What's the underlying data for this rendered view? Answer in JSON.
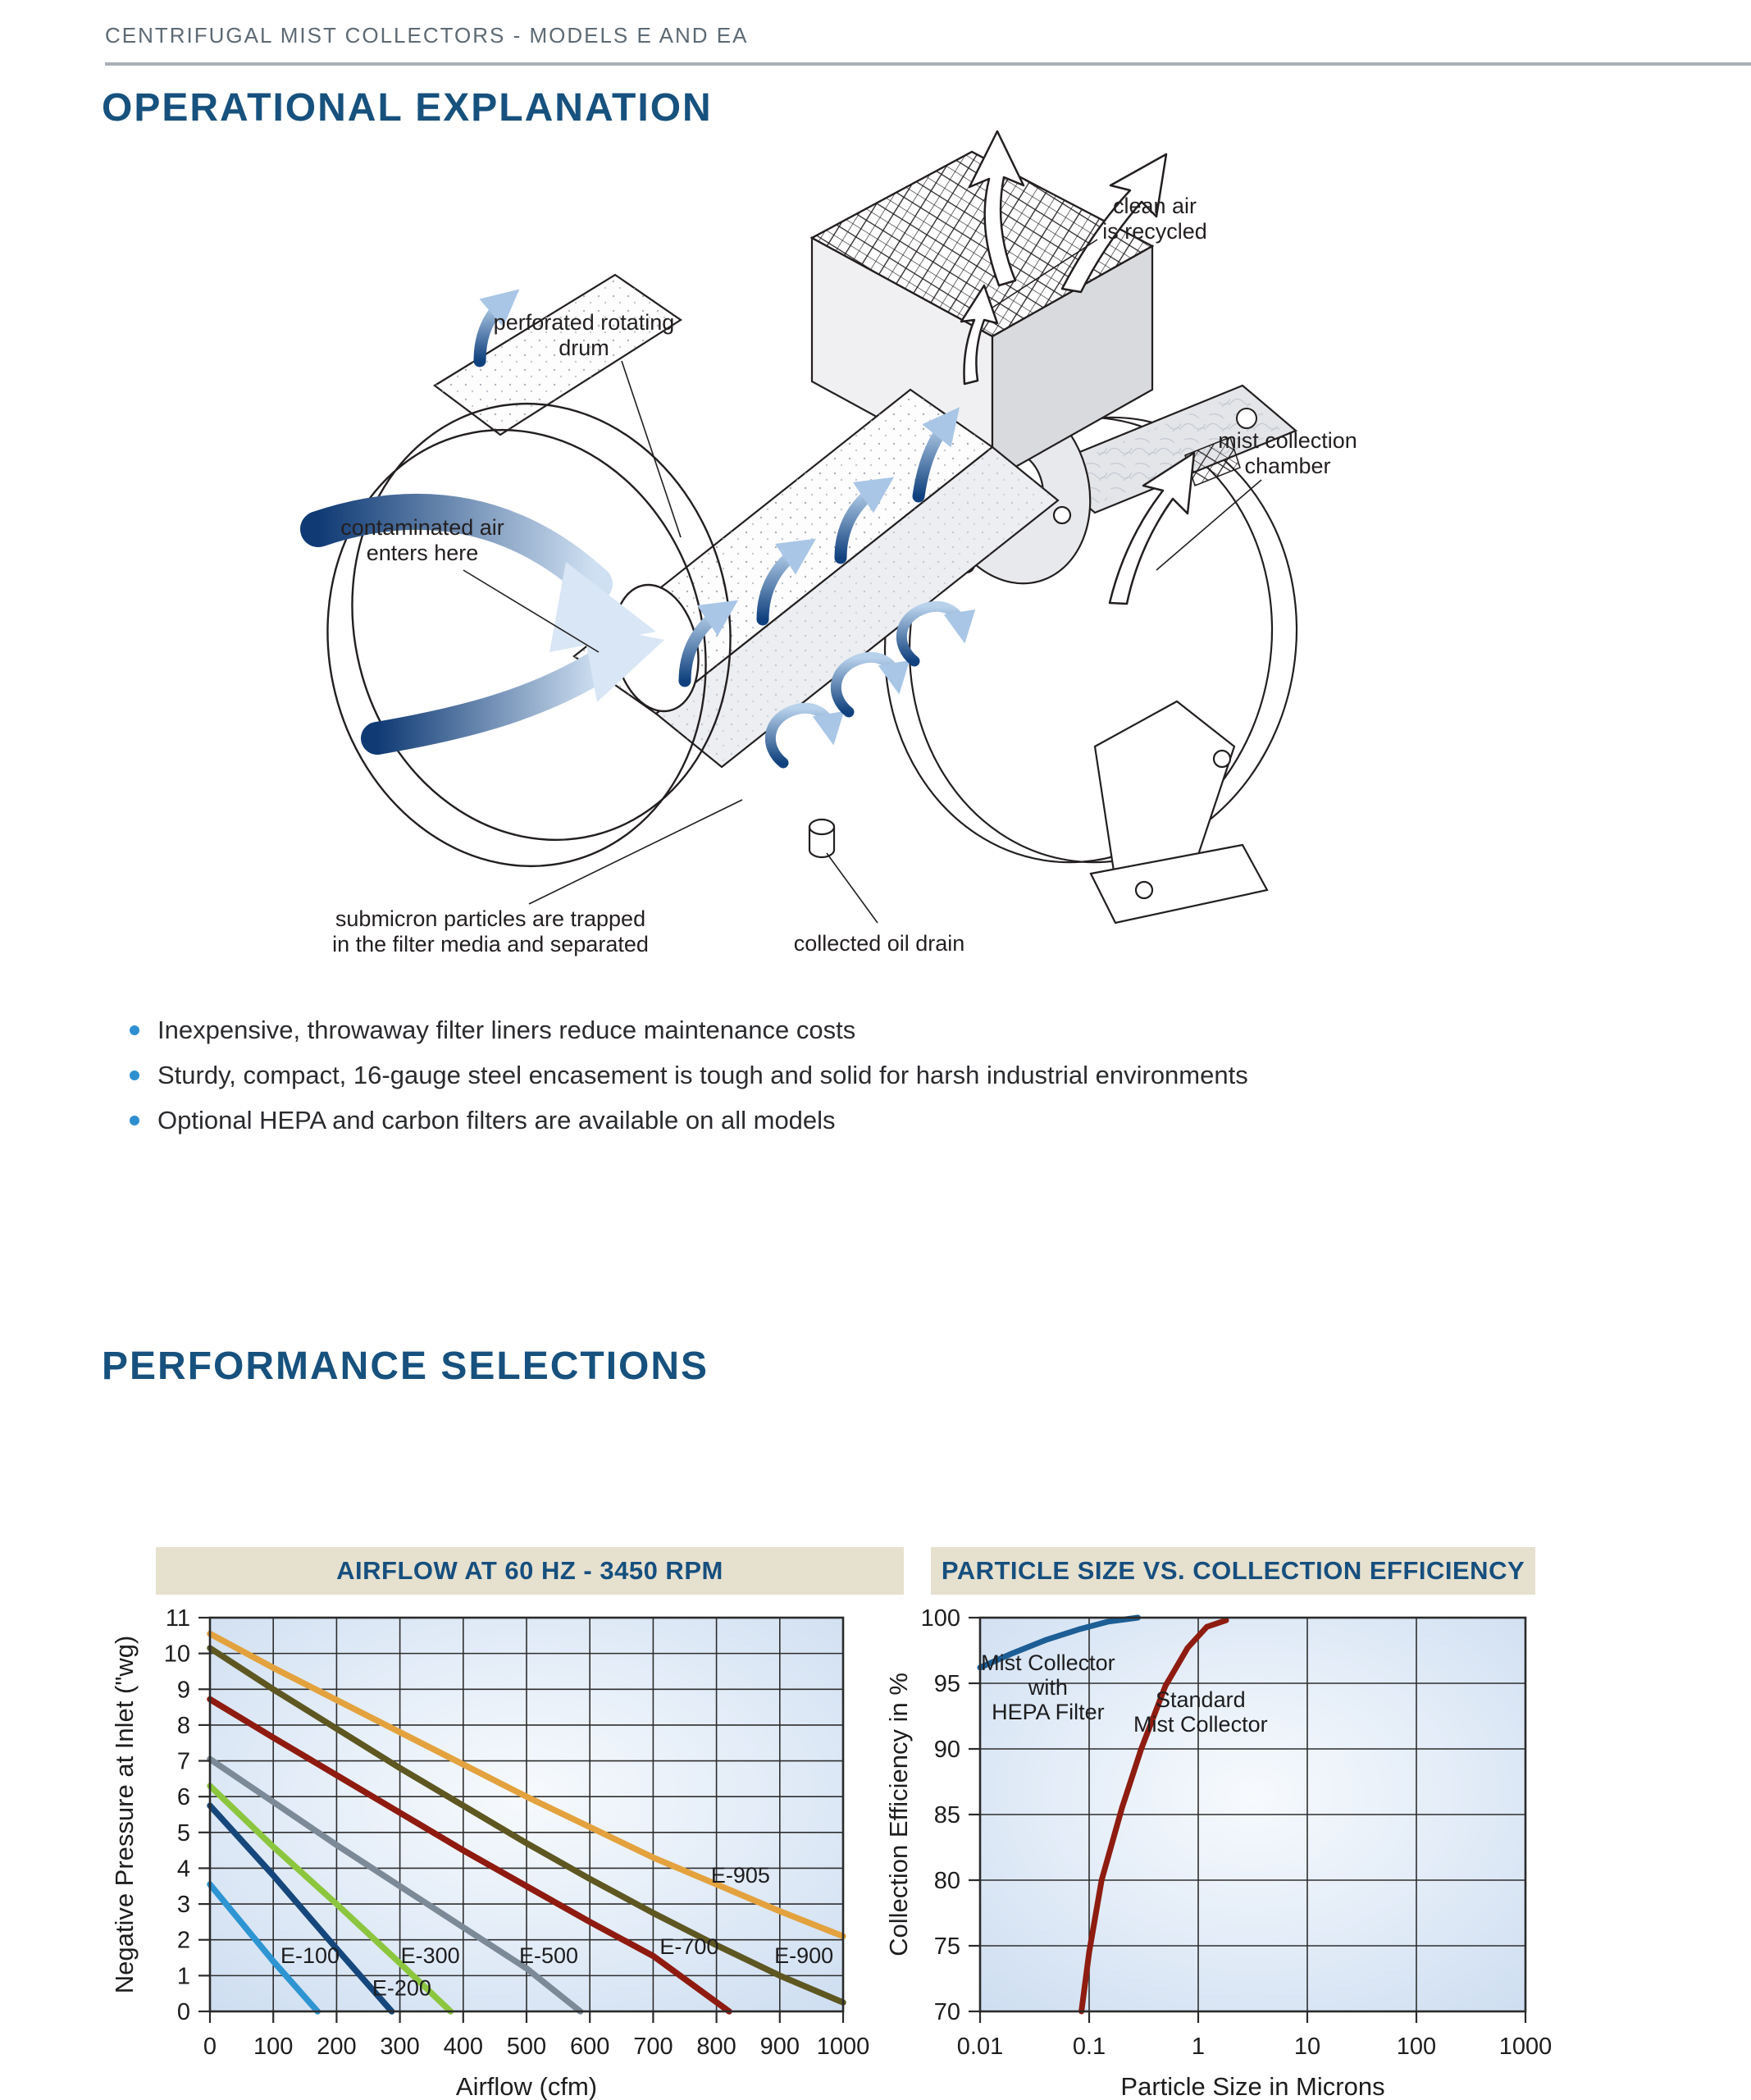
{
  "page": {
    "eyebrow": "CENTRIFUGAL MIST COLLECTORS - MODELS E AND EA",
    "section1_title": "OPERATIONAL EXPLANATION",
    "section2_title": "PERFORMANCE SELECTIONS",
    "bullets": [
      "Inexpensive, throwaway filter liners reduce maintenance costs",
      "Sturdy, compact, 16-gauge steel encasement is tough and solid for harsh industrial environments",
      "Optional HEPA and carbon filters are available on all models"
    ]
  },
  "colors": {
    "heading_blue": "#17517e",
    "eyebrow_gray": "#5d6a74",
    "bullet_blue": "#2e8fd0",
    "bar_bg": "#e6e0cf",
    "bar_text": "#164f7e"
  },
  "diagram": {
    "labels": [
      {
        "id": "clean-air",
        "lines": [
          "clean air",
          "is recycled"
        ]
      },
      {
        "id": "drum",
        "lines": [
          "perforated rotating",
          "drum"
        ]
      },
      {
        "id": "chamber",
        "lines": [
          "mist collection",
          "chamber"
        ]
      },
      {
        "id": "contaminated",
        "lines": [
          "contaminated air",
          "enters here"
        ]
      },
      {
        "id": "submicron",
        "lines": [
          "submicron particles are trapped",
          "in the filter media and separated"
        ]
      },
      {
        "id": "drain",
        "lines": [
          "collected oil drain"
        ]
      }
    ]
  },
  "chart_data": [
    {
      "type": "line",
      "title": "AIRFLOW AT 60 HZ - 3450 RPM",
      "xlabel": "Airflow (cfm)",
      "ylabel": "Negative Pressure at Inlet (\"wg)",
      "x_scale": "linear",
      "xlim": [
        0,
        1000
      ],
      "ylim": [
        0,
        11
      ],
      "x_ticks": [
        0,
        100,
        200,
        300,
        400,
        500,
        600,
        700,
        800,
        900,
        1000
      ],
      "y_ticks": [
        0,
        1,
        2,
        3,
        4,
        5,
        6,
        7,
        8,
        9,
        10,
        11
      ],
      "grid": true,
      "legend_position": "inline-labels",
      "series": [
        {
          "name": "E-100",
          "color": "#2e95d2",
          "x": [
            0,
            100,
            170
          ],
          "y": [
            3.55,
            1.4,
            0
          ],
          "label_at": [
            158,
            1.35
          ]
        },
        {
          "name": "E-200",
          "color": "#16477c",
          "x": [
            0,
            100,
            200,
            287
          ],
          "y": [
            5.75,
            3.8,
            1.75,
            0
          ],
          "label_at": [
            303,
            0.45
          ]
        },
        {
          "name": "E-300",
          "color": "#8cc63f",
          "x": [
            0,
            100,
            200,
            300,
            380
          ],
          "y": [
            6.3,
            4.6,
            3.0,
            1.35,
            0
          ],
          "label_at": [
            348,
            1.35
          ]
        },
        {
          "name": "E-500",
          "color": "#7c8a98",
          "x": [
            0,
            100,
            200,
            300,
            400,
            500,
            585
          ],
          "y": [
            7.05,
            5.85,
            4.65,
            3.5,
            2.35,
            1.2,
            0
          ],
          "label_at": [
            535,
            1.35
          ]
        },
        {
          "name": "E-700",
          "color": "#8f1a10",
          "x": [
            0,
            100,
            200,
            300,
            400,
            500,
            600,
            700,
            820
          ],
          "y": [
            8.72,
            7.65,
            6.6,
            5.55,
            4.5,
            3.5,
            2.5,
            1.55,
            0
          ],
          "label_at": [
            757,
            1.6
          ]
        },
        {
          "name": "E-900",
          "color": "#5e5721",
          "x": [
            0,
            100,
            200,
            300,
            400,
            500,
            600,
            700,
            800,
            900,
            1000
          ],
          "y": [
            10.15,
            9.0,
            7.9,
            6.8,
            5.75,
            4.7,
            3.7,
            2.75,
            1.85,
            1.0,
            0.25
          ],
          "label_at": [
            938,
            1.35
          ]
        },
        {
          "name": "E-905",
          "color": "#e3a23e",
          "x": [
            0,
            100,
            200,
            300,
            400,
            500,
            600,
            700,
            800,
            900,
            1000
          ],
          "y": [
            10.55,
            9.6,
            8.7,
            7.8,
            6.9,
            6.0,
            5.15,
            4.3,
            3.55,
            2.8,
            2.1
          ],
          "label_at": [
            838,
            3.6
          ]
        }
      ]
    },
    {
      "type": "line",
      "title": "PARTICLE SIZE VS. COLLECTION EFFICIENCY",
      "xlabel": "Particle Size in Microns",
      "ylabel": "Collection Efficiency in %",
      "x_scale": "log",
      "xlim": [
        0.01,
        1000
      ],
      "ylim": [
        70,
        100
      ],
      "x_ticks": [
        0.01,
        0.1,
        1,
        10,
        100,
        1000
      ],
      "y_ticks": [
        70,
        75,
        80,
        85,
        90,
        95,
        100
      ],
      "grid": true,
      "legend_position": "inline-labels",
      "series": [
        {
          "name": "Mist Collector with HEPA Filter",
          "color": "#1c5e95",
          "x": [
            0.01,
            0.02,
            0.04,
            0.08,
            0.15,
            0.28
          ],
          "y": [
            96.2,
            97.3,
            98.3,
            99.1,
            99.7,
            100
          ],
          "label_lines": [
            "Mist Collector",
            "with",
            "HEPA Filter"
          ],
          "label_at": [
            0.042,
            96.0
          ]
        },
        {
          "name": "Standard Mist Collector",
          "color": "#8e1c10",
          "x": [
            0.085,
            0.1,
            0.13,
            0.2,
            0.3,
            0.5,
            0.8,
            1.2,
            1.8
          ],
          "y": [
            70,
            74.5,
            80,
            85.5,
            90,
            94.8,
            97.7,
            99.3,
            99.8
          ],
          "label_lines": [
            "Standard",
            "Mist Collector"
          ],
          "label_at": [
            1.05,
            93.2
          ]
        }
      ]
    }
  ]
}
